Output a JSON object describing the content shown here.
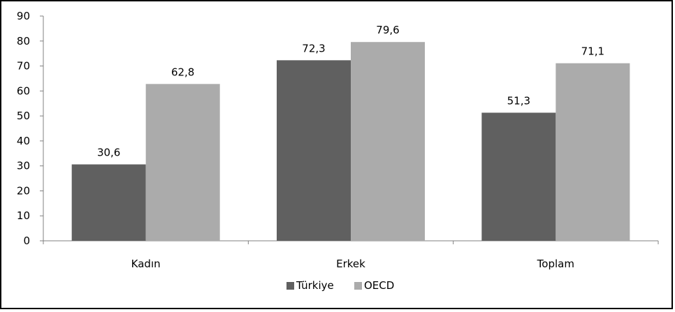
{
  "chart_data": {
    "type": "bar",
    "title": "",
    "xlabel": "",
    "ylabel": "",
    "categories": [
      "Kadın",
      "Erkek",
      "Toplam"
    ],
    "series": [
      {
        "name": "Türkiye",
        "values": [
          30.6,
          72.3,
          51.3
        ],
        "labels": [
          "30,6",
          "72,3",
          "51,3"
        ],
        "color": "#606060"
      },
      {
        "name": "OECD",
        "values": [
          62.8,
          79.6,
          71.1
        ],
        "labels": [
          "62,8",
          "79,6",
          "71,1"
        ],
        "color": "#ababab"
      }
    ],
    "ylim": [
      0,
      90
    ],
    "yticks": [
      0,
      10,
      20,
      30,
      40,
      50,
      60,
      70,
      80,
      90
    ],
    "grid": false,
    "legend_position": "bottom"
  }
}
